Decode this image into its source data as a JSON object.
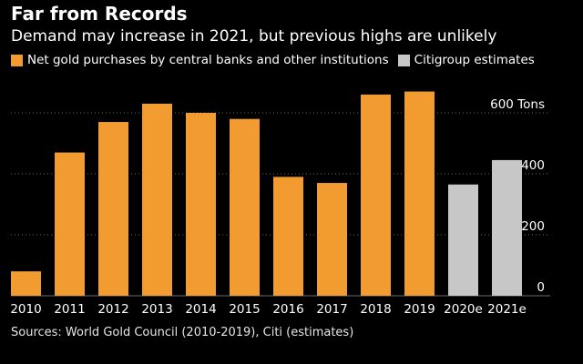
{
  "colors": {
    "actual": "#f29b30",
    "estimate": "#c7c7c7",
    "background": "#000000",
    "grid": "#6b6b6b",
    "text": "#ffffff"
  },
  "chart_data": {
    "type": "bar",
    "title": "Far from Records",
    "subtitle": "Demand may increase in 2021, but previous highs are unlikely",
    "unit_label": "600 Tons",
    "categories": [
      "2010",
      "2011",
      "2012",
      "2013",
      "2014",
      "2015",
      "2016",
      "2017",
      "2018",
      "2019",
      "2020e",
      "2021e"
    ],
    "series": [
      {
        "name": "Net gold purchases by central banks and other institutions",
        "color": "#f29b30",
        "values": [
          80,
          470,
          570,
          630,
          600,
          580,
          390,
          370,
          660,
          670,
          null,
          null
        ]
      },
      {
        "name": "Citigroup estimates",
        "color": "#c7c7c7",
        "values": [
          null,
          null,
          null,
          null,
          null,
          null,
          null,
          null,
          null,
          null,
          365,
          445
        ]
      }
    ],
    "ylim": [
      0,
      600
    ],
    "yticks": [
      0,
      200,
      400,
      600
    ],
    "ytick_labels": [
      "0",
      "200",
      "400",
      "600 Tons"
    ],
    "yaxis_side": "right",
    "grid": "horizontal-dotted",
    "legend_position": "top-left"
  },
  "source": "Sources: World Gold Council (2010-2019), Citi (estimates)"
}
